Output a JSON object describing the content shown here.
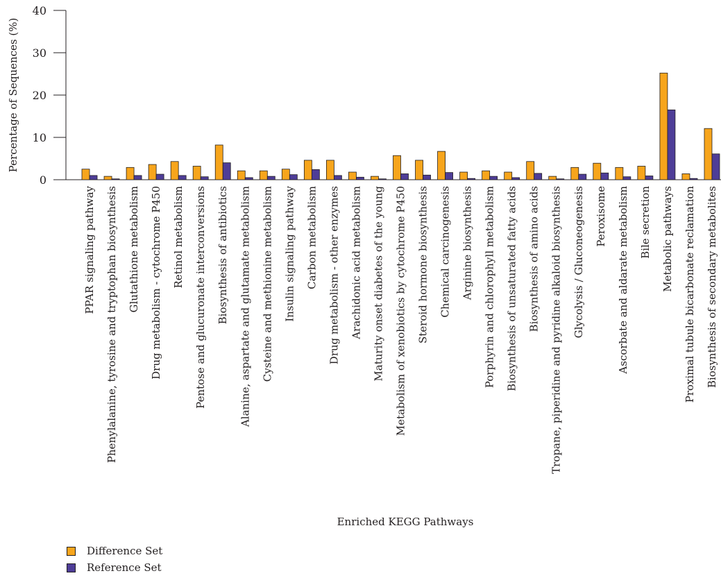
{
  "chart_data": {
    "type": "bar",
    "title": "",
    "xlabel": "Enriched KEGG Pathways",
    "ylabel": "Percentage of Sequences (%)",
    "ylim": [
      0,
      40
    ],
    "yticks": [
      0,
      10,
      20,
      30,
      40
    ],
    "legend_position": "bottom-left",
    "categories": [
      "PPAR signaling pathway",
      "Phenylalanine, tyrosine and tryptophan biosynthesis",
      "Glutathione metabolism",
      "Drug metabolism - cytochrome P450",
      "Retinol metabolism",
      "Pentose and glucuronate interconversions",
      "Biosynthesis of antibiotics",
      "Alanine, aspartate and glutamate metabolism",
      "Cysteine and methionine metabolism",
      "Insulin signaling pathway",
      "Carbon metabolism",
      "Drug metabolism - other enzymes",
      "Arachidonic acid metabolism",
      "Maturity onset diabetes of the young",
      "Metabolism of xenobiotics by cytochrome P450",
      "Steroid hormone biosynthesis",
      "Chemical carcinogenesis",
      "Arginine biosynthesis",
      "Porphyrin and chlorophyll metabolism",
      "Biosynthesis of unsaturated fatty acids",
      "Biosynthesis of amino acids",
      "Tropane, piperidine and pyridine alkaloid biosynthesis",
      "Glycolysis / Gluconeogenesis",
      "Peroxisome",
      "Ascorbate and aldarate metabolism",
      "Bile secretion",
      "Metabolic pathways",
      "Proximal tubule bicarbonate reclamation",
      "Biosynthesis of secondary metabolites"
    ],
    "series": [
      {
        "name": "Difference Set",
        "color": "#f7a51c",
        "values": [
          2.5,
          0.8,
          2.9,
          3.6,
          4.3,
          3.2,
          8.2,
          2.1,
          2.1,
          2.5,
          4.6,
          4.6,
          1.8,
          0.8,
          5.7,
          4.6,
          6.7,
          1.8,
          2.1,
          1.8,
          4.3,
          0.8,
          2.9,
          3.9,
          2.9,
          3.2,
          25.2,
          1.4,
          12.1
        ]
      },
      {
        "name": "Reference Set",
        "color": "#4e3d97",
        "values": [
          1.0,
          0.2,
          1.0,
          1.3,
          1.0,
          0.7,
          4.0,
          0.5,
          0.8,
          1.2,
          2.4,
          1.0,
          0.6,
          0.2,
          1.4,
          1.1,
          1.7,
          0.3,
          0.8,
          0.5,
          1.5,
          0.2,
          1.3,
          1.6,
          0.7,
          0.9,
          16.5,
          0.3,
          6.1
        ]
      }
    ]
  }
}
